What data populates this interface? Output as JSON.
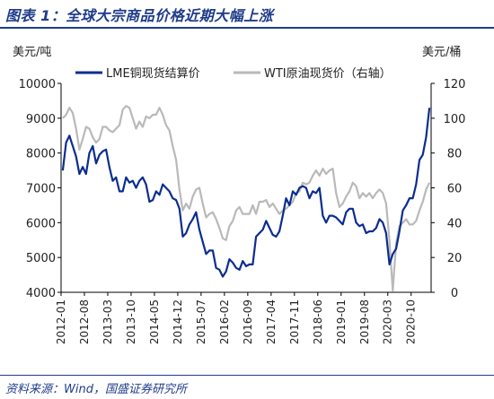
{
  "header": {
    "title": "图表 1：全球大宗商品价格近期大幅上涨"
  },
  "footer": {
    "source": "资料来源：Wind，国盛证券研究所"
  },
  "chart_data": {
    "type": "line",
    "left_axis": {
      "unit_label": "美元/吨",
      "ylim": [
        4000,
        10000
      ],
      "ticks": [
        4000,
        5000,
        6000,
        7000,
        8000,
        9000,
        10000
      ]
    },
    "right_axis": {
      "unit_label": "美元/桶",
      "ylim": [
        0,
        120
      ],
      "ticks": [
        0,
        20,
        40,
        60,
        80,
        100,
        120
      ]
    },
    "x_range": [
      "2012-01",
      "2021-03"
    ],
    "x_ticks": [
      "2012-01",
      "2012-08",
      "2013-03",
      "2013-10",
      "2014-05",
      "2014-12",
      "2015-07",
      "2016-02",
      "2016-09",
      "2017-04",
      "2017-11",
      "2018-06",
      "2019-01",
      "2019-08",
      "2020-03",
      "2020-10"
    ],
    "grid": false,
    "legend_position": "top",
    "series": [
      {
        "name": "LME铜现货结算价",
        "axis": "left",
        "color": "#0b2d8f",
        "points": [
          [
            "2012-01",
            7500
          ],
          [
            "2012-02",
            8300
          ],
          [
            "2012-03",
            8500
          ],
          [
            "2012-04",
            8200
          ],
          [
            "2012-05",
            7900
          ],
          [
            "2012-06",
            7400
          ],
          [
            "2012-07",
            7600
          ],
          [
            "2012-08",
            7400
          ],
          [
            "2012-09",
            8000
          ],
          [
            "2012-10",
            8200
          ],
          [
            "2012-11",
            7700
          ],
          [
            "2012-12",
            7950
          ],
          [
            "2013-01",
            8050
          ],
          [
            "2013-02",
            8100
          ],
          [
            "2013-03",
            7600
          ],
          [
            "2013-04",
            7200
          ],
          [
            "2013-05",
            7300
          ],
          [
            "2013-06",
            6900
          ],
          [
            "2013-07",
            6900
          ],
          [
            "2013-08",
            7300
          ],
          [
            "2013-09",
            7150
          ],
          [
            "2013-10",
            7200
          ],
          [
            "2013-11",
            7000
          ],
          [
            "2013-12",
            7200
          ],
          [
            "2014-01",
            7300
          ],
          [
            "2014-02",
            7100
          ],
          [
            "2014-03",
            6600
          ],
          [
            "2014-04",
            6650
          ],
          [
            "2014-05",
            6900
          ],
          [
            "2014-06",
            6800
          ],
          [
            "2014-07",
            7100
          ],
          [
            "2014-08",
            7000
          ],
          [
            "2014-09",
            6900
          ],
          [
            "2014-10",
            6700
          ],
          [
            "2014-11",
            6650
          ],
          [
            "2014-12",
            6400
          ],
          [
            "2015-01",
            5600
          ],
          [
            "2015-02",
            5700
          ],
          [
            "2015-03",
            5950
          ],
          [
            "2015-04",
            6100
          ],
          [
            "2015-05",
            6300
          ],
          [
            "2015-06",
            5800
          ],
          [
            "2015-07",
            5450
          ],
          [
            "2015-08",
            5100
          ],
          [
            "2015-09",
            5200
          ],
          [
            "2015-10",
            5200
          ],
          [
            "2015-11",
            4700
          ],
          [
            "2015-12",
            4650
          ],
          [
            "2016-01",
            4450
          ],
          [
            "2016-02",
            4600
          ],
          [
            "2016-03",
            4950
          ],
          [
            "2016-04",
            4850
          ],
          [
            "2016-05",
            4700
          ],
          [
            "2016-06",
            4650
          ],
          [
            "2016-07",
            4900
          ],
          [
            "2016-08",
            4750
          ],
          [
            "2016-09",
            4800
          ],
          [
            "2016-10",
            4800
          ],
          [
            "2016-11",
            5600
          ],
          [
            "2016-12",
            5700
          ],
          [
            "2017-01",
            5800
          ],
          [
            "2017-02",
            6050
          ],
          [
            "2017-03",
            5850
          ],
          [
            "2017-04",
            5650
          ],
          [
            "2017-05",
            5600
          ],
          [
            "2017-06",
            5750
          ],
          [
            "2017-07",
            6200
          ],
          [
            "2017-08",
            6700
          ],
          [
            "2017-09",
            6500
          ],
          [
            "2017-10",
            6900
          ],
          [
            "2017-11",
            6800
          ],
          [
            "2017-12",
            7000
          ],
          [
            "2018-01",
            7050
          ],
          [
            "2018-02",
            7000
          ],
          [
            "2018-03",
            6700
          ],
          [
            "2018-04",
            6900
          ],
          [
            "2018-05",
            6850
          ],
          [
            "2018-06",
            7000
          ],
          [
            "2018-07",
            6200
          ],
          [
            "2018-08",
            6000
          ],
          [
            "2018-09",
            6200
          ],
          [
            "2018-10",
            6200
          ],
          [
            "2018-11",
            6150
          ],
          [
            "2018-12",
            6050
          ],
          [
            "2019-01",
            5950
          ],
          [
            "2019-02",
            6300
          ],
          [
            "2019-03",
            6400
          ],
          [
            "2019-04",
            6400
          ],
          [
            "2019-05",
            6000
          ],
          [
            "2019-06",
            5900
          ],
          [
            "2019-07",
            5950
          ],
          [
            "2019-08",
            5700
          ],
          [
            "2019-09",
            5750
          ],
          [
            "2019-10",
            5750
          ],
          [
            "2019-11",
            5850
          ],
          [
            "2019-12",
            6100
          ],
          [
            "2020-01",
            6000
          ],
          [
            "2020-02",
            5700
          ],
          [
            "2020-03",
            4800
          ],
          [
            "2020-04",
            5100
          ],
          [
            "2020-05",
            5250
          ],
          [
            "2020-06",
            5750
          ],
          [
            "2020-07",
            6350
          ],
          [
            "2020-08",
            6500
          ],
          [
            "2020-09",
            6700
          ],
          [
            "2020-10",
            6700
          ],
          [
            "2020-11",
            7100
          ],
          [
            "2020-12",
            7800
          ],
          [
            "2021-01",
            7950
          ],
          [
            "2021-02",
            8450
          ],
          [
            "2021-03",
            9300
          ]
        ]
      },
      {
        "name": "WTI原油现货价（右轴）",
        "axis": "right",
        "color": "#b9b9b9",
        "points": [
          [
            "2012-01",
            100
          ],
          [
            "2012-02",
            102
          ],
          [
            "2012-03",
            106
          ],
          [
            "2012-04",
            103
          ],
          [
            "2012-05",
            94
          ],
          [
            "2012-06",
            82
          ],
          [
            "2012-07",
            88
          ],
          [
            "2012-08",
            95
          ],
          [
            "2012-09",
            94
          ],
          [
            "2012-10",
            89
          ],
          [
            "2012-11",
            86
          ],
          [
            "2012-12",
            88
          ],
          [
            "2013-01",
            95
          ],
          [
            "2013-02",
            95
          ],
          [
            "2013-03",
            93
          ],
          [
            "2013-04",
            92
          ],
          [
            "2013-05",
            94
          ],
          [
            "2013-06",
            96
          ],
          [
            "2013-07",
            105
          ],
          [
            "2013-08",
            107
          ],
          [
            "2013-09",
            106
          ],
          [
            "2013-10",
            100
          ],
          [
            "2013-11",
            94
          ],
          [
            "2013-12",
            98
          ],
          [
            "2014-01",
            95
          ],
          [
            "2014-02",
            101
          ],
          [
            "2014-03",
            100
          ],
          [
            "2014-04",
            102
          ],
          [
            "2014-05",
            102
          ],
          [
            "2014-06",
            106
          ],
          [
            "2014-07",
            102
          ],
          [
            "2014-08",
            96
          ],
          [
            "2014-09",
            93
          ],
          [
            "2014-10",
            84
          ],
          [
            "2014-11",
            76
          ],
          [
            "2014-12",
            59
          ],
          [
            "2015-01",
            47
          ],
          [
            "2015-02",
            51
          ],
          [
            "2015-03",
            48
          ],
          [
            "2015-04",
            55
          ],
          [
            "2015-05",
            59
          ],
          [
            "2015-06",
            60
          ],
          [
            "2015-07",
            51
          ],
          [
            "2015-08",
            43
          ],
          [
            "2015-09",
            45
          ],
          [
            "2015-10",
            46
          ],
          [
            "2015-11",
            42
          ],
          [
            "2015-12",
            37
          ],
          [
            "2016-01",
            31
          ],
          [
            "2016-02",
            30
          ],
          [
            "2016-03",
            38
          ],
          [
            "2016-04",
            41
          ],
          [
            "2016-05",
            47
          ],
          [
            "2016-06",
            49
          ],
          [
            "2016-07",
            45
          ],
          [
            "2016-08",
            45
          ],
          [
            "2016-09",
            45
          ],
          [
            "2016-10",
            50
          ],
          [
            "2016-11",
            45
          ],
          [
            "2016-12",
            52
          ],
          [
            "2017-01",
            52
          ],
          [
            "2017-02",
            53
          ],
          [
            "2017-03",
            49
          ],
          [
            "2017-04",
            51
          ],
          [
            "2017-05",
            48
          ],
          [
            "2017-06",
            45
          ],
          [
            "2017-07",
            47
          ],
          [
            "2017-08",
            48
          ],
          [
            "2017-09",
            50
          ],
          [
            "2017-10",
            52
          ],
          [
            "2017-11",
            57
          ],
          [
            "2017-12",
            58
          ],
          [
            "2018-01",
            63
          ],
          [
            "2018-02",
            62
          ],
          [
            "2018-03",
            63
          ],
          [
            "2018-04",
            67
          ],
          [
            "2018-05",
            70
          ],
          [
            "2018-06",
            67
          ],
          [
            "2018-07",
            71
          ],
          [
            "2018-08",
            68
          ],
          [
            "2018-09",
            70
          ],
          [
            "2018-10",
            71
          ],
          [
            "2018-11",
            57
          ],
          [
            "2018-12",
            49
          ],
          [
            "2019-01",
            51
          ],
          [
            "2019-02",
            55
          ],
          [
            "2019-03",
            58
          ],
          [
            "2019-04",
            63
          ],
          [
            "2019-05",
            61
          ],
          [
            "2019-06",
            54
          ],
          [
            "2019-07",
            57
          ],
          [
            "2019-08",
            55
          ],
          [
            "2019-09",
            57
          ],
          [
            "2019-10",
            54
          ],
          [
            "2019-11",
            57
          ],
          [
            "2019-12",
            59
          ],
          [
            "2020-01",
            57
          ],
          [
            "2020-02",
            51
          ],
          [
            "2020-03",
            30
          ],
          [
            "2020-04",
            1
          ],
          [
            "2020-05",
            28
          ],
          [
            "2020-06",
            38
          ],
          [
            "2020-07",
            40
          ],
          [
            "2020-08",
            42
          ],
          [
            "2020-09",
            39
          ],
          [
            "2020-10",
            39
          ],
          [
            "2020-11",
            41
          ],
          [
            "2020-12",
            47
          ],
          [
            "2021-01",
            52
          ],
          [
            "2021-02",
            59
          ],
          [
            "2021-03",
            63
          ]
        ]
      }
    ]
  }
}
